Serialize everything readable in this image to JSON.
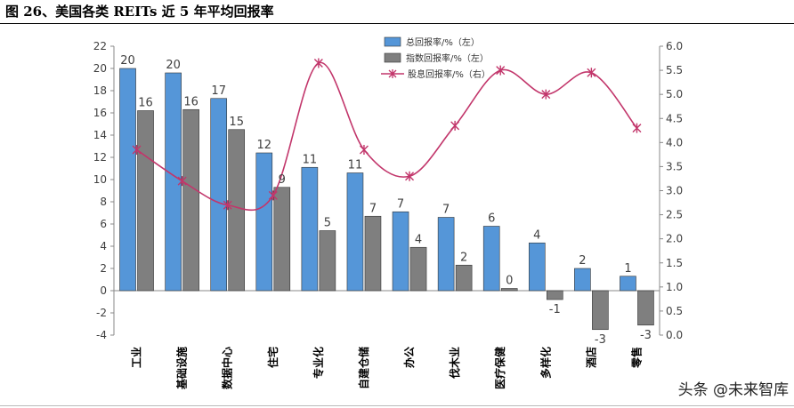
{
  "figure_title": "图 26、美国各类 REITs 近 5 年平均回报率",
  "watermark": "头条 @未来智库",
  "chart_data": {
    "type": "bar",
    "categories": [
      "工业",
      "基础设施",
      "数据中心",
      "住宅",
      "专业化",
      "自建仓储",
      "办公",
      "伐木业",
      "医疗保健",
      "多样化",
      "酒店",
      "零售"
    ],
    "series": [
      {
        "name": "总回报率/%（左）",
        "axis": "left",
        "type": "bar",
        "color": "#5596d8",
        "values": [
          20,
          19.6,
          17.3,
          12.4,
          11.1,
          10.6,
          7.1,
          6.6,
          5.8,
          4.3,
          2.0,
          1.3
        ],
        "labels": [
          "20",
          "20",
          "17",
          "12",
          "11",
          "11",
          "7",
          "7",
          "6",
          "4",
          "2",
          "1"
        ]
      },
      {
        "name": "指数回报率/%（左）",
        "axis": "left",
        "type": "bar",
        "color": "#7f7f7f",
        "values": [
          16.2,
          16.3,
          14.5,
          9.3,
          5.4,
          6.7,
          3.9,
          2.3,
          0.2,
          -0.8,
          -3.5,
          -3.1
        ],
        "labels": [
          "16",
          "16",
          "15",
          "9",
          "5",
          "7",
          "4",
          "2",
          "0",
          "-1",
          "-3",
          "-3"
        ]
      },
      {
        "name": "股息回报率/%（右）",
        "axis": "right",
        "type": "line",
        "color": "#c2366b",
        "values": [
          3.85,
          3.2,
          2.7,
          2.9,
          5.65,
          3.85,
          3.3,
          4.35,
          5.5,
          5.0,
          5.45,
          4.3
        ]
      }
    ],
    "ylim_left": [
      -4,
      22
    ],
    "yticks_left": [
      "-4",
      "-2",
      "0",
      "2",
      "4",
      "6",
      "8",
      "10",
      "12",
      "14",
      "16",
      "18",
      "20",
      "22"
    ],
    "ylim_right": [
      0.0,
      6.0
    ],
    "yticks_right": [
      "0.0",
      "0.5",
      "1.0",
      "1.5",
      "2.0",
      "2.5",
      "3.0",
      "3.5",
      "4.0",
      "4.5",
      "5.0",
      "5.5",
      "6.0"
    ],
    "legend_position": "top-center"
  }
}
